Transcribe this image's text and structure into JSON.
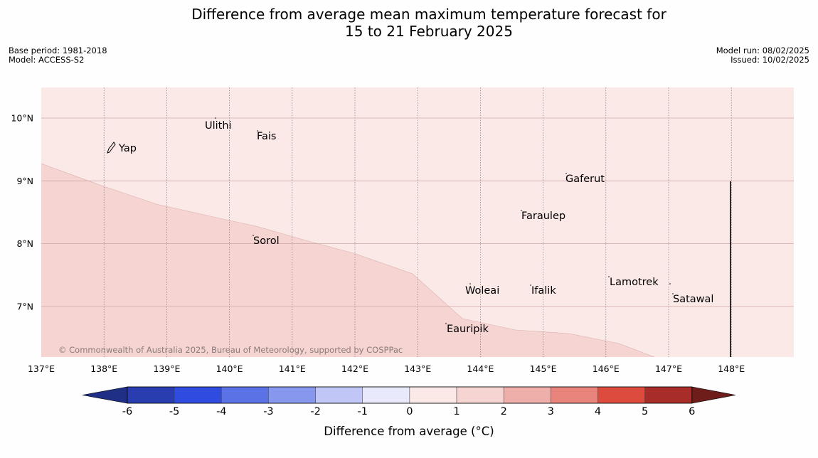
{
  "header": {
    "title_line1": "Difference from average mean maximum temperature forecast for",
    "title_line2": "15 to 21 February 2025",
    "base_period": "Base period: 1981-2018",
    "model": "Model: ACCESS-S2",
    "model_run": "Model run: 08/02/2025",
    "issued": "Issued: 10/02/2025"
  },
  "map": {
    "lon_ticks": [
      "137°E",
      "138°E",
      "139°E",
      "140°E",
      "141°E",
      "142°E",
      "143°E",
      "144°E",
      "145°E",
      "146°E",
      "147°E",
      "148°E"
    ],
    "lat_ticks": [
      "10°N",
      "9°N",
      "8°N",
      "7°N"
    ],
    "places": [
      {
        "name": "Yap"
      },
      {
        "name": "Ulithi"
      },
      {
        "name": "Fais"
      },
      {
        "name": "Gaferut"
      },
      {
        "name": "Faraulep"
      },
      {
        "name": "Sorol"
      },
      {
        "name": "Woleai"
      },
      {
        "name": "Ifalik"
      },
      {
        "name": "Lamotrek"
      },
      {
        "name": "Satawal"
      },
      {
        "name": "Eauripik"
      }
    ],
    "copyright": "© Commonwealth of Australia 2025, Bureau of Meteorology, supported by COSPPac",
    "zones": [
      {
        "range": "0 to 1",
        "color": "#fbe9e7"
      },
      {
        "range": "1 to 2",
        "color": "#f5d4d2"
      }
    ]
  },
  "legend": {
    "label": "Difference from average (°C)",
    "ticks": [
      "-6",
      "-5",
      "-4",
      "-3",
      "-2",
      "-1",
      "0",
      "1",
      "2",
      "3",
      "4",
      "5",
      "6"
    ],
    "colors": {
      "below_min": "#1f2f86",
      "bins": [
        "#2a3db0",
        "#2f4be0",
        "#5b72e6",
        "#8897ee",
        "#c0c6f6",
        "#e8eafb",
        "#fbe9e7",
        "#f5d4d2",
        "#eeaea9",
        "#e8847c",
        "#dd4a3e",
        "#a82c27"
      ],
      "above_max": "#6e1d1a"
    }
  }
}
